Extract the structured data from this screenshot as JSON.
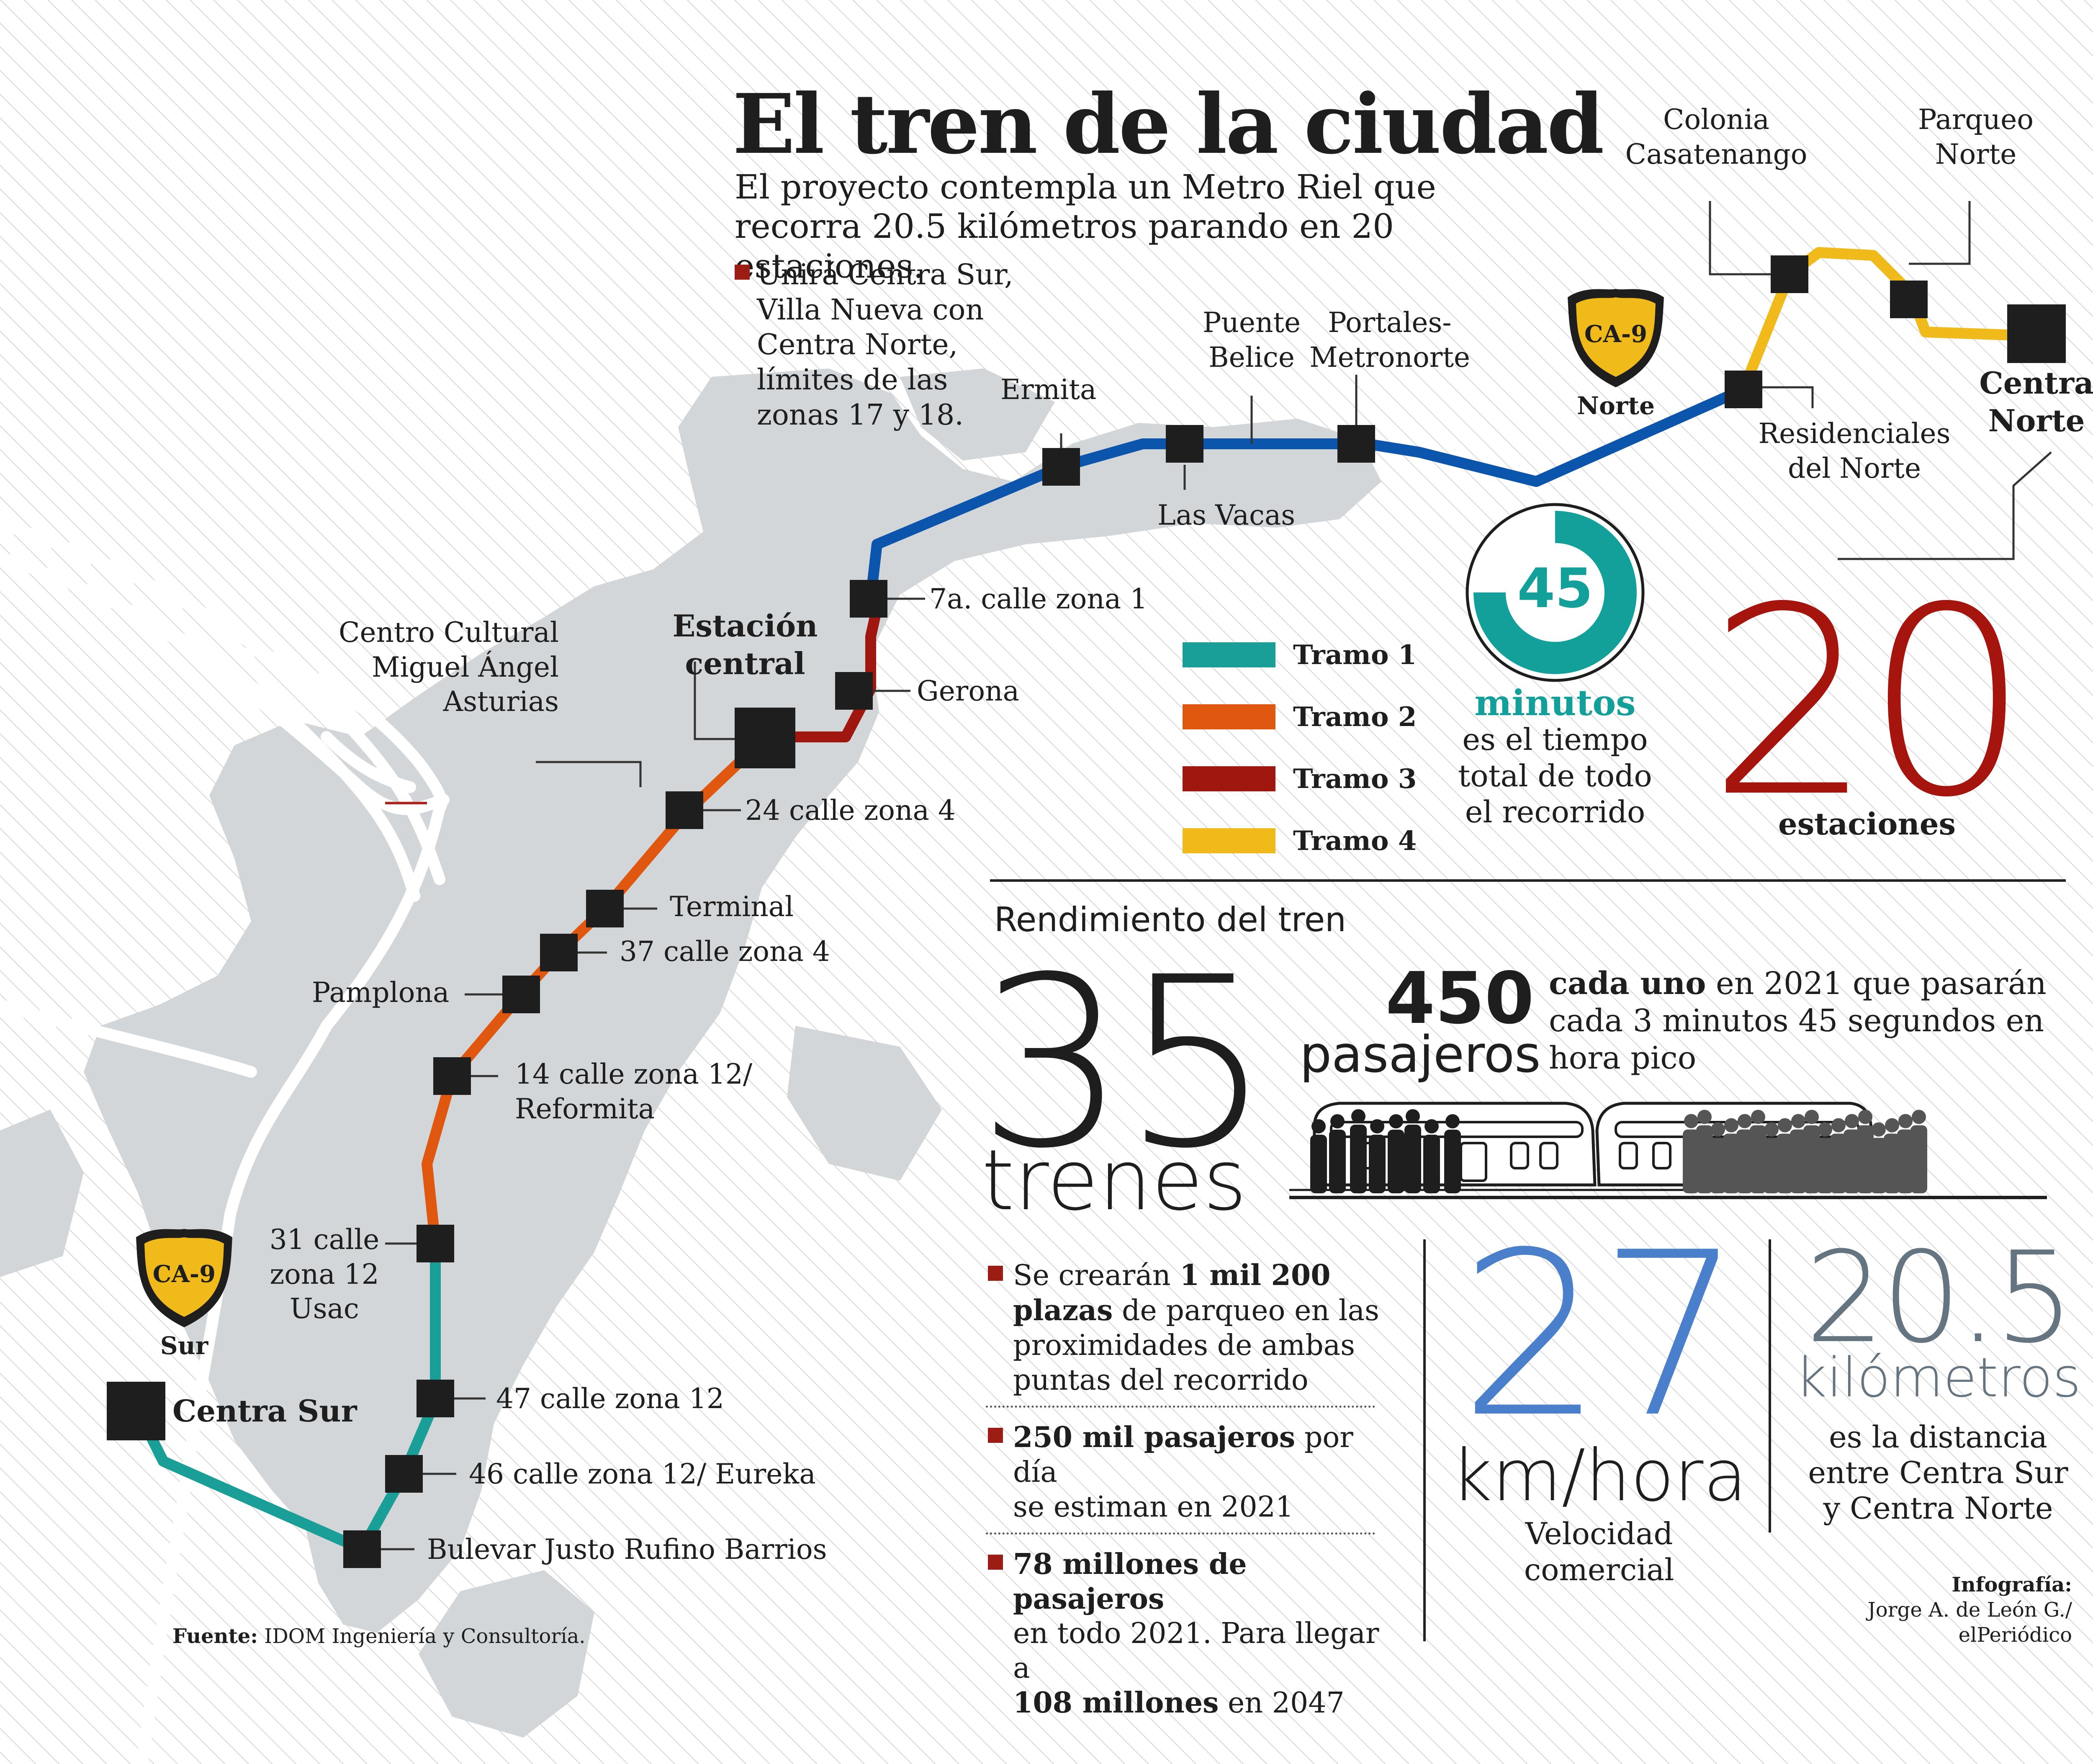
{
  "header": {
    "title": "El tren de la ciudad",
    "subtitle": "El proyecto contempla un Metro Riel que recorra 20.5 kilómetros parando en 20 estaciones.",
    "intro_lines": [
      "Unirá Centra Sur,",
      "Villa Nueva con",
      "Centra Norte,",
      "límites de las",
      "zonas 17 y 18."
    ]
  },
  "stations": {
    "colonia_casatenango": [
      "Colonia",
      "Casatenango"
    ],
    "parqueo_norte": [
      "Parqueo",
      "Norte"
    ],
    "centra_norte": [
      "Centra",
      "Norte"
    ],
    "residenciales": [
      "Residenciales",
      "del Norte"
    ],
    "puente_belice": [
      "Puente",
      "Belice"
    ],
    "portales": [
      "Portales-",
      "Metronorte"
    ],
    "ermita": "Ermita",
    "las_vacas": "Las Vacas",
    "calle7": "7a. calle zona 1",
    "gerona": "Gerona",
    "estacion_central": [
      "Estación",
      "central"
    ],
    "calle24": "24 calle zona 4",
    "terminal": "Terminal",
    "calle37": "37 calle zona 4",
    "pamplona": "Pamplona",
    "calle14": [
      "14 calle zona 12/",
      "Reformita"
    ],
    "calle31": [
      "31 calle",
      "zona 12",
      "Usac"
    ],
    "calle47": "47 calle zona 12",
    "calle46": "46 calle zona 12/ Eureka",
    "bulevar": "Bulevar Justo Rufino Barrios",
    "centra_sur": "Centra Sur"
  },
  "landmark": [
    "Centro Cultural",
    "Miguel Ángel",
    "Asturias"
  ],
  "shields": {
    "north": {
      "code": "CA-9",
      "label": "Norte"
    },
    "south": {
      "code": "CA-9",
      "label": "Sur"
    }
  },
  "legend": [
    {
      "label": "Tramo 1",
      "color": "#1a9e98"
    },
    {
      "label": "Tramo 2",
      "color": "#e0580f"
    },
    {
      "label": "Tramo 3",
      "color": "#a0170f"
    },
    {
      "label": "Tramo 4",
      "color": "#f0ba1b"
    }
  ],
  "route_colors": {
    "tramo1": "#1a9e98",
    "tramo2": "#e0580f",
    "tramo3": "#a0170f",
    "tramo4": "#f0ba1b",
    "north_blue": "#0b55ad"
  },
  "time": {
    "value": "45",
    "unit": "minutos",
    "lines": [
      "es el tiempo",
      "total de todo",
      "el recorrido"
    ],
    "progress": 0.75,
    "color": "#14a09a"
  },
  "stations_total": {
    "value": "20",
    "label": "estaciones",
    "color": "#a5140d"
  },
  "performance": {
    "heading": "Rendimiento del tren",
    "trains_value": "35",
    "trains_label": "trenes",
    "pax_value": "450",
    "pax_label": "pasajeros",
    "pax_desc_bold": "cada uno",
    "pax_desc_lines": [
      " en 2021 que pasarán",
      "cada 3 minutos 45 segundos en",
      "hora pico"
    ]
  },
  "facts": [
    {
      "lines": [
        [
          "Se crearán ",
          "1 mil 200"
        ],
        [
          "plazas",
          " de parqueo en las"
        ],
        [
          "",
          "proximidades de ambas"
        ],
        [
          "",
          "puntas del recorrido"
        ]
      ]
    },
    {
      "lines": [
        [
          "250 mil pasajeros",
          " por día"
        ],
        [
          "",
          "se estiman en 2021"
        ]
      ]
    },
    {
      "lines": [
        [
          "78 millones de pasajeros",
          ""
        ],
        [
          "",
          "en todo 2021. Para llegar a"
        ],
        [
          "108 millones",
          " en 2047"
        ]
      ]
    }
  ],
  "speed": {
    "value": "27",
    "unit": "km/hora",
    "label_lines": [
      "Velocidad",
      "comercial"
    ],
    "color": "#4a7fcc"
  },
  "distance": {
    "value": "20.5",
    "unit": "kilómetros",
    "label_lines": [
      "es la distancia",
      "entre Centra Sur",
      "y Centra Norte"
    ],
    "color": "#647480"
  },
  "source": {
    "label": "Fuente:",
    "text": "IDOM Ingeniería y Consultoría."
  },
  "credit": {
    "label": "Infografía:",
    "lines": [
      "Jorge A. de León G./",
      "elPeriódico"
    ]
  }
}
